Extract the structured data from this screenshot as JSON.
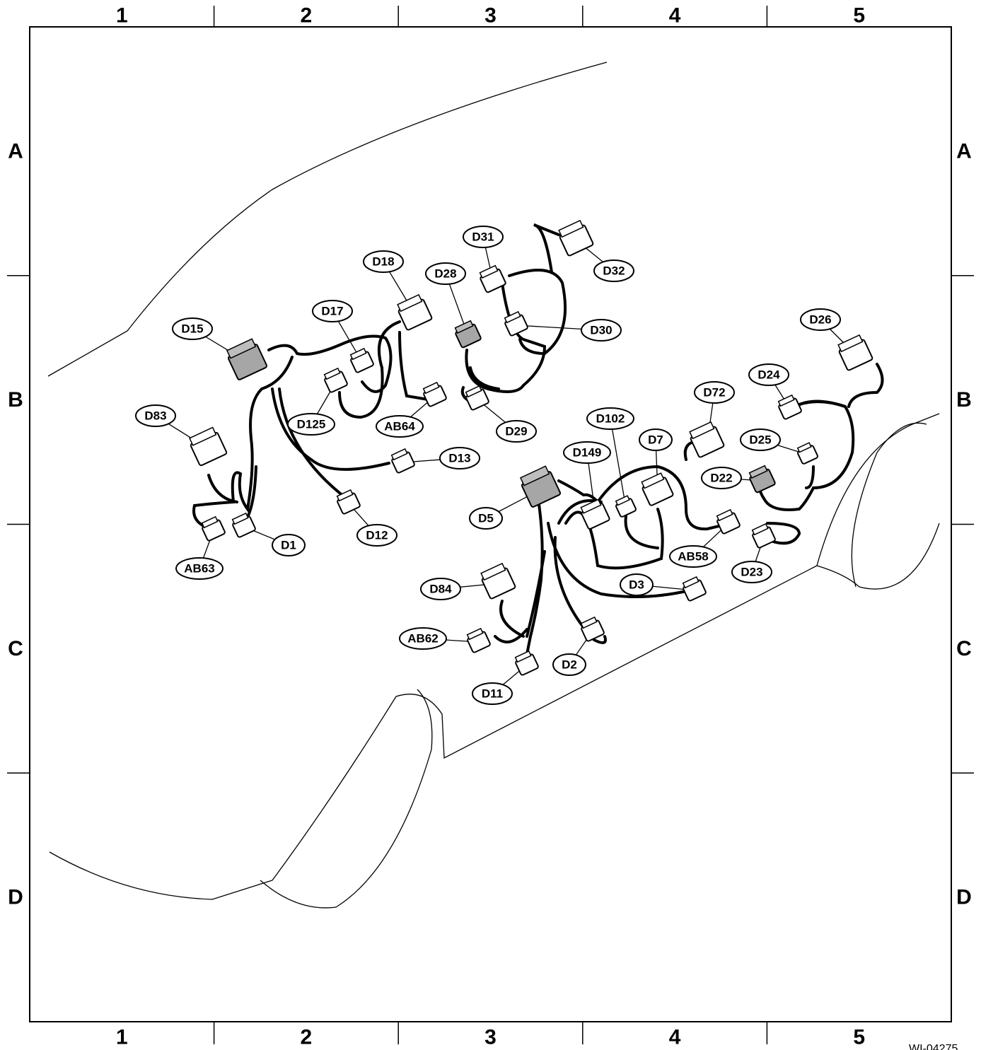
{
  "grid": {
    "columns": [
      "1",
      "2",
      "3",
      "4",
      "5"
    ],
    "rows": [
      "A",
      "B",
      "C",
      "D"
    ]
  },
  "connectors": [
    "D31",
    "D32",
    "D18",
    "D28",
    "D17",
    "D15",
    "D30",
    "D26",
    "D24",
    "D72",
    "D83",
    "D125",
    "AB64",
    "D29",
    "D102",
    "D25",
    "D7",
    "D149",
    "D13",
    "D22",
    "D5",
    "D12",
    "D1",
    "AB58",
    "D23",
    "AB63",
    "D3",
    "D84",
    "AB62",
    "D2",
    "D11"
  ],
  "figure_id": "WI-04275"
}
